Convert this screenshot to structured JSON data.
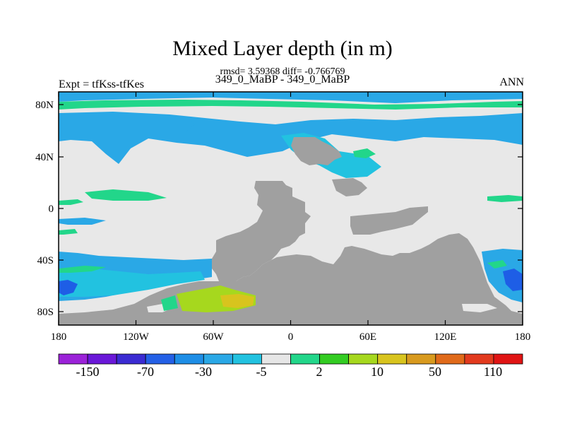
{
  "title": "Mixed Layer depth (in m)",
  "rmsd_line": "rmsd= 3.59368 diff= -0.766769",
  "subtitle": "349_0_MaBP - 349_0_MaBP",
  "expt_label": "Expt = tfKss-tfKes",
  "season_label": "ANN",
  "x_ticks": [
    "180",
    "120W",
    "60W",
    "0",
    "60E",
    "120E",
    "180"
  ],
  "y_ticks": [
    "80N",
    "40N",
    "0",
    "40S",
    "80S"
  ],
  "colorbar": {
    "colors": [
      "#9b22d8",
      "#6a18d8",
      "#3b2bd2",
      "#2460e6",
      "#1e8ee6",
      "#2aa8e6",
      "#22c2e0",
      "#e6e6e6",
      "#22d68a",
      "#33cc22",
      "#a6d81e",
      "#d8c41e",
      "#d89a1e",
      "#e06a1a",
      "#e23a1e",
      "#e01414"
    ],
    "labels": [
      "-150",
      "-70",
      "-30",
      "-5",
      "2",
      "10",
      "50",
      "110"
    ]
  },
  "palette": {
    "land": "#a0a0a0",
    "neutral": "#e8e8e8",
    "blue": "#2aa8e6",
    "cyan": "#22c2e0",
    "green": "#22d68a",
    "yellow": "#a6d81e",
    "orange": "#d8c41e",
    "dark_blue": "#1e5ee6"
  }
}
